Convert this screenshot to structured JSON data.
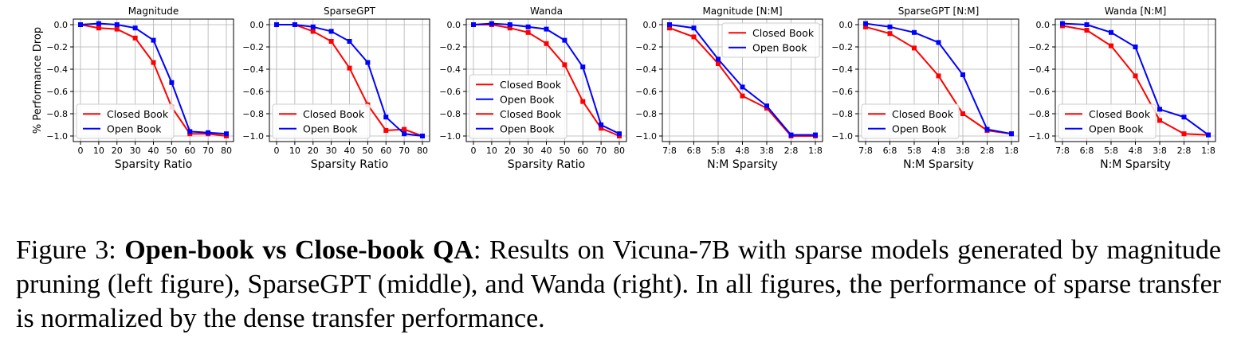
{
  "colors": {
    "closed": "#ff0000",
    "open": "#0000ff",
    "grid": "#b0b0b0"
  },
  "chart_data": [
    {
      "type": "line",
      "title": "Magnitude",
      "xlabel": "Sparsity Ratio",
      "ylabel": "% Performance Drop",
      "x": [
        "0",
        "10",
        "20",
        "30",
        "40",
        "50",
        "60",
        "70",
        "80"
      ],
      "ylim": [
        -1.05,
        0.05
      ],
      "yticks": [
        "0.0",
        "−0.2",
        "−0.4",
        "−0.6",
        "−0.8",
        "−1.0"
      ],
      "grid": true,
      "legend_position": "lower-left",
      "series": [
        {
          "name": "Closed Book",
          "color": "closed",
          "values": [
            0.0,
            -0.03,
            -0.04,
            -0.12,
            -0.34,
            -0.74,
            -0.98,
            -0.98,
            -1.0
          ]
        },
        {
          "name": "Open Book",
          "color": "open",
          "values": [
            0.0,
            0.01,
            0.0,
            -0.03,
            -0.14,
            -0.52,
            -0.96,
            -0.97,
            -0.98
          ]
        }
      ]
    },
    {
      "type": "line",
      "title": "SparseGPT",
      "xlabel": "Sparsity Ratio",
      "ylabel": "",
      "x": [
        "0",
        "10",
        "20",
        "30",
        "40",
        "50",
        "60",
        "70",
        "80"
      ],
      "ylim": [
        -1.05,
        0.05
      ],
      "yticks": [
        "0.0",
        "−0.2",
        "−0.4",
        "−0.6",
        "−0.8",
        "−1.0"
      ],
      "grid": true,
      "legend_position": "lower-left",
      "series": [
        {
          "name": "Closed Book",
          "color": "closed",
          "values": [
            0.0,
            0.0,
            -0.06,
            -0.15,
            -0.39,
            -0.72,
            -0.95,
            -0.94,
            -1.0
          ]
        },
        {
          "name": "Open Book",
          "color": "open",
          "values": [
            0.0,
            0.0,
            -0.02,
            -0.06,
            -0.15,
            -0.34,
            -0.83,
            -0.98,
            -1.0
          ]
        }
      ]
    },
    {
      "type": "line",
      "title": "Wanda",
      "xlabel": "Sparsity Ratio",
      "ylabel": "",
      "x": [
        "0",
        "10",
        "20",
        "30",
        "40",
        "50",
        "60",
        "70",
        "80"
      ],
      "ylim": [
        -1.05,
        0.05
      ],
      "yticks": [
        "0.0",
        "−0.2",
        "−0.4",
        "−0.6",
        "−0.8",
        "−1.0"
      ],
      "grid": true,
      "legend_position": "lower-left",
      "series": [
        {
          "name": "Closed Book",
          "color": "closed",
          "values": [
            0.0,
            0.0,
            -0.03,
            -0.07,
            -0.17,
            -0.36,
            -0.69,
            -0.93,
            -1.0
          ]
        },
        {
          "name": "Open Book",
          "color": "open",
          "values": [
            0.0,
            0.01,
            0.0,
            -0.02,
            -0.04,
            -0.14,
            -0.38,
            -0.9,
            -0.98
          ]
        },
        {
          "name": "Closed Book",
          "color": "closed",
          "values": null
        },
        {
          "name": "Open Book",
          "color": "open",
          "values": null
        }
      ]
    },
    {
      "type": "line",
      "title": "Magnitude [N:M]",
      "xlabel": "N:M Sparsity",
      "ylabel": "",
      "x": [
        "7:8",
        "6:8",
        "5:8",
        "4:8",
        "3:8",
        "2:8",
        "1:8"
      ],
      "ylim": [
        -1.05,
        0.05
      ],
      "yticks": [
        "0.0",
        "−0.2",
        "−0.4",
        "−0.6",
        "−0.8",
        "−1.0"
      ],
      "grid": true,
      "legend_position": "upper-right",
      "series": [
        {
          "name": "Closed Book",
          "color": "closed",
          "values": [
            -0.03,
            -0.11,
            -0.35,
            -0.64,
            -0.75,
            -1.0,
            -1.0
          ]
        },
        {
          "name": "Open Book",
          "color": "open",
          "values": [
            0.0,
            -0.03,
            -0.31,
            -0.56,
            -0.73,
            -0.99,
            -0.99
          ]
        }
      ]
    },
    {
      "type": "line",
      "title": "SparseGPT [N:M]",
      "xlabel": "N:M Sparsity",
      "ylabel": "",
      "x": [
        "7:8",
        "6:8",
        "5:8",
        "4:8",
        "3:8",
        "2:8",
        "1:8"
      ],
      "ylim": [
        -1.05,
        0.05
      ],
      "yticks": [
        "0.0",
        "−0.2",
        "−0.4",
        "−0.6",
        "−0.8",
        "−1.0"
      ],
      "grid": true,
      "legend_position": "lower-left",
      "series": [
        {
          "name": "Closed Book",
          "color": "closed",
          "values": [
            -0.02,
            -0.08,
            -0.21,
            -0.46,
            -0.8,
            -0.95,
            -0.98
          ]
        },
        {
          "name": "Open Book",
          "color": "open",
          "values": [
            0.01,
            -0.02,
            -0.07,
            -0.16,
            -0.45,
            -0.94,
            -0.98
          ]
        }
      ]
    },
    {
      "type": "line",
      "title": "Wanda [N:M]",
      "xlabel": "N:M Sparsity",
      "ylabel": "",
      "x": [
        "7:8",
        "6:8",
        "5:8",
        "4:8",
        "3:8",
        "2:8",
        "1:8"
      ],
      "ylim": [
        -1.05,
        0.05
      ],
      "yticks": [
        "0.0",
        "−0.2",
        "−0.4",
        "−0.6",
        "−0.8",
        "−1.0"
      ],
      "grid": true,
      "legend_position": "lower-left",
      "series": [
        {
          "name": "Closed Book",
          "color": "closed",
          "values": [
            -0.01,
            -0.05,
            -0.19,
            -0.46,
            -0.86,
            -0.98,
            -0.99
          ]
        },
        {
          "name": "Open Book",
          "color": "open",
          "values": [
            0.01,
            0.0,
            -0.07,
            -0.2,
            -0.76,
            -0.83,
            -0.99
          ]
        }
      ]
    }
  ],
  "caption": {
    "label": "Figure 3:",
    "bold": "Open-book vs Close-book QA",
    "text": ": Results on Vicuna-7B with sparse models generated by magnitude pruning (left figure), SparseGPT (middle), and Wanda (right). In all figures, the performance of sparse transfer is normalized by the dense transfer performance."
  }
}
